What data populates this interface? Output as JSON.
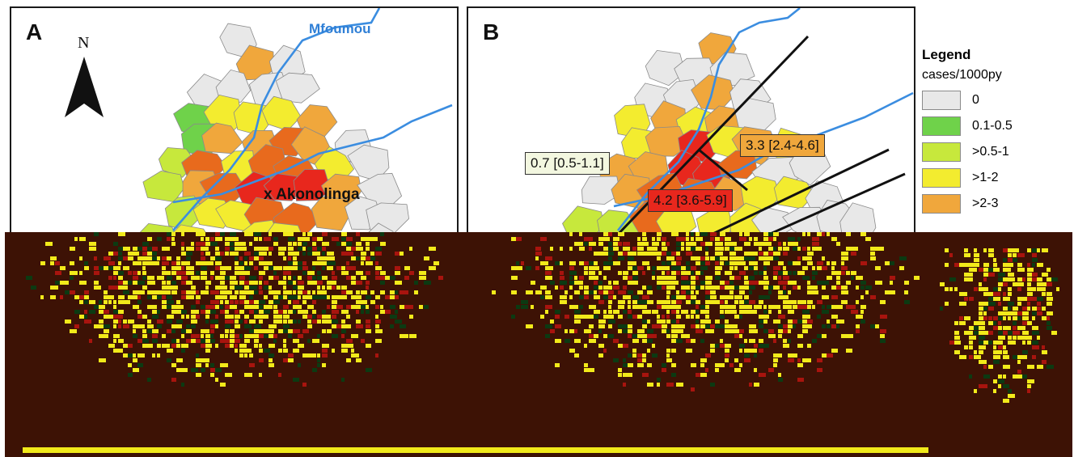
{
  "panel_a": {
    "label": "A",
    "north": "N",
    "river": "Mfoumou",
    "town": "x Akonolinga"
  },
  "panel_b": {
    "label": "B",
    "rate_boxes": [
      {
        "text": "0.7 [0.5-1.1]",
        "fill": "#f3f7e0"
      },
      {
        "text": "3.3 [2.4-4.6]",
        "fill": "#f0a73c"
      },
      {
        "text": "4.2 [3.6-5.9]",
        "fill": "#e8271d"
      }
    ]
  },
  "legend": {
    "title": "Legend",
    "subtitle": "cases/1000py",
    "items": [
      {
        "label": "0",
        "color": "#e8e8e8"
      },
      {
        "label": "0.1-0.5",
        "color": "#6fd24a"
      },
      {
        "label": ">0.5-1",
        "color": "#c7e83c"
      },
      {
        "label": ">1-2",
        "color": "#f3ec2f"
      },
      {
        "label": ">2-3",
        "color": "#f0a73c"
      }
    ]
  },
  "colors": {
    "river": "#3b8de0",
    "class_0": "#e8e8e8",
    "class_1": "#6fd24a",
    "class_2": "#c7e83c",
    "class_3": "#f3ec2f",
    "class_4": "#f0a73c",
    "class_5": "#e86a1d",
    "class_6": "#e8271d",
    "glitch_bg": "#3d1205",
    "glitch_yellow": "#f2ea1a",
    "glitch_red": "#a8140e",
    "glitch_green": "#0c3a12"
  }
}
